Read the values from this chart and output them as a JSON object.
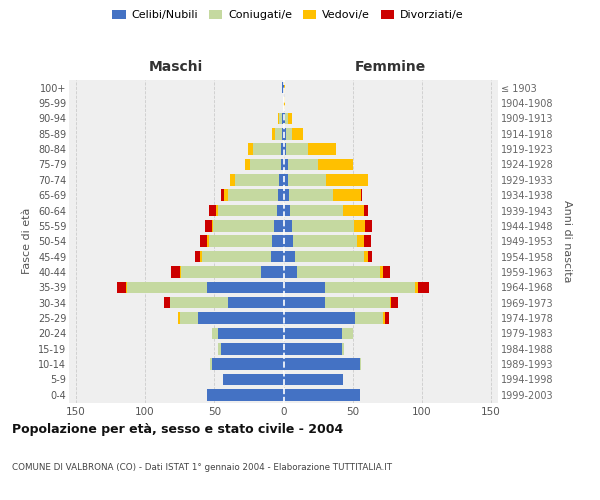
{
  "age_groups": [
    "0-4",
    "5-9",
    "10-14",
    "15-19",
    "20-24",
    "25-29",
    "30-34",
    "35-39",
    "40-44",
    "45-49",
    "50-54",
    "55-59",
    "60-64",
    "65-69",
    "70-74",
    "75-79",
    "80-84",
    "85-89",
    "90-94",
    "95-99",
    "100+"
  ],
  "birth_years": [
    "1999-2003",
    "1994-1998",
    "1989-1993",
    "1984-1988",
    "1979-1983",
    "1974-1978",
    "1969-1973",
    "1964-1968",
    "1959-1963",
    "1954-1958",
    "1949-1953",
    "1944-1948",
    "1939-1943",
    "1934-1938",
    "1929-1933",
    "1924-1928",
    "1919-1923",
    "1914-1918",
    "1909-1913",
    "1904-1908",
    "≤ 1903"
  ],
  "male_celibi": [
    55,
    44,
    52,
    45,
    47,
    62,
    40,
    55,
    16,
    9,
    8,
    7,
    5,
    4,
    3,
    2,
    2,
    1,
    1,
    0,
    1
  ],
  "male_coniugati": [
    0,
    0,
    1,
    2,
    5,
    13,
    42,
    58,
    58,
    50,
    46,
    44,
    42,
    36,
    32,
    22,
    20,
    5,
    2,
    0,
    0
  ],
  "male_vedovi": [
    0,
    0,
    0,
    0,
    0,
    1,
    0,
    1,
    1,
    1,
    1,
    1,
    2,
    3,
    4,
    4,
    4,
    2,
    1,
    0,
    0
  ],
  "male_divorziati": [
    0,
    0,
    0,
    0,
    0,
    0,
    4,
    6,
    6,
    4,
    5,
    5,
    5,
    2,
    0,
    0,
    0,
    0,
    0,
    0,
    0
  ],
  "female_celibi": [
    55,
    43,
    55,
    42,
    42,
    52,
    30,
    30,
    10,
    8,
    7,
    6,
    5,
    4,
    3,
    3,
    2,
    2,
    1,
    0,
    0
  ],
  "female_coniugati": [
    0,
    0,
    1,
    2,
    8,
    20,
    47,
    65,
    60,
    50,
    46,
    45,
    38,
    32,
    28,
    22,
    16,
    4,
    2,
    0,
    0
  ],
  "female_vedovi": [
    0,
    0,
    0,
    0,
    0,
    1,
    1,
    2,
    2,
    3,
    5,
    8,
    15,
    20,
    30,
    25,
    20,
    8,
    3,
    1,
    1
  ],
  "female_divorziati": [
    0,
    0,
    0,
    0,
    0,
    3,
    5,
    8,
    5,
    3,
    5,
    5,
    3,
    1,
    0,
    0,
    0,
    0,
    0,
    0,
    0
  ],
  "colors": {
    "celibi": "#4472C4",
    "coniugati": "#c5d9a0",
    "vedovi": "#ffc000",
    "divorziati": "#cc0000"
  },
  "legend_labels": [
    "Celibi/Nubili",
    "Coniugati/e",
    "Vedovi/e",
    "Divorziati/e"
  ],
  "maschi_label": "Maschi",
  "femmine_label": "Femmine",
  "ylabel_left": "Fasce di età",
  "ylabel_right": "Anni di nascita",
  "title": "Popolazione per età, sesso e stato civile - 2004",
  "subtitle": "COMUNE DI VALBRONA (CO) - Dati ISTAT 1° gennaio 2004 - Elaborazione TUTTITALIA.IT",
  "xlim": 155,
  "bg_color": "#ffffff",
  "plot_bg": "#efefef"
}
